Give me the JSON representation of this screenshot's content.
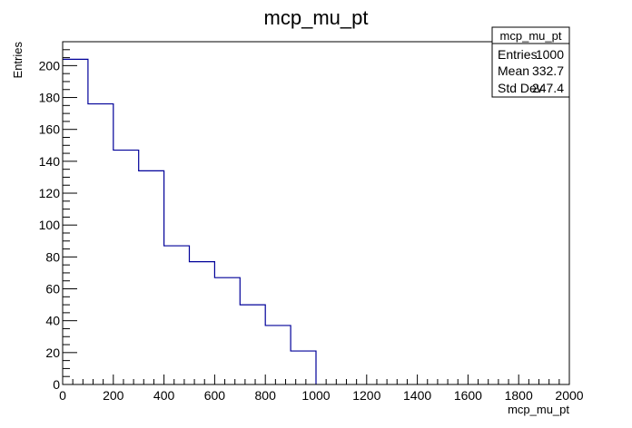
{
  "chart_data": {
    "type": "bar",
    "title": "mcp_mu_pt",
    "xlabel": "mcp_mu_pt",
    "ylabel": "Entries",
    "xlim": [
      0,
      2000
    ],
    "ylim": [
      0,
      215
    ],
    "x_ticks": [
      "0",
      "200",
      "400",
      "600",
      "800",
      "1000",
      "1200",
      "1400",
      "1600",
      "1800",
      "2000"
    ],
    "y_ticks": [
      "0",
      "20",
      "40",
      "60",
      "80",
      "100",
      "120",
      "140",
      "160",
      "180",
      "200"
    ],
    "bin_edges": [
      0,
      100,
      200,
      300,
      400,
      500,
      600,
      700,
      800,
      900,
      1000
    ],
    "values": [
      204,
      176,
      147,
      134,
      87,
      77,
      67,
      50,
      37,
      21
    ],
    "grid": false,
    "line_color": "#000099",
    "stats_box": {
      "title": "mcp_mu_pt",
      "rows": [
        {
          "label": "Entries",
          "value": "1000"
        },
        {
          "label": "Mean",
          "value": "332.7"
        },
        {
          "label": "Std Dev",
          "value": "247.4"
        }
      ]
    }
  }
}
